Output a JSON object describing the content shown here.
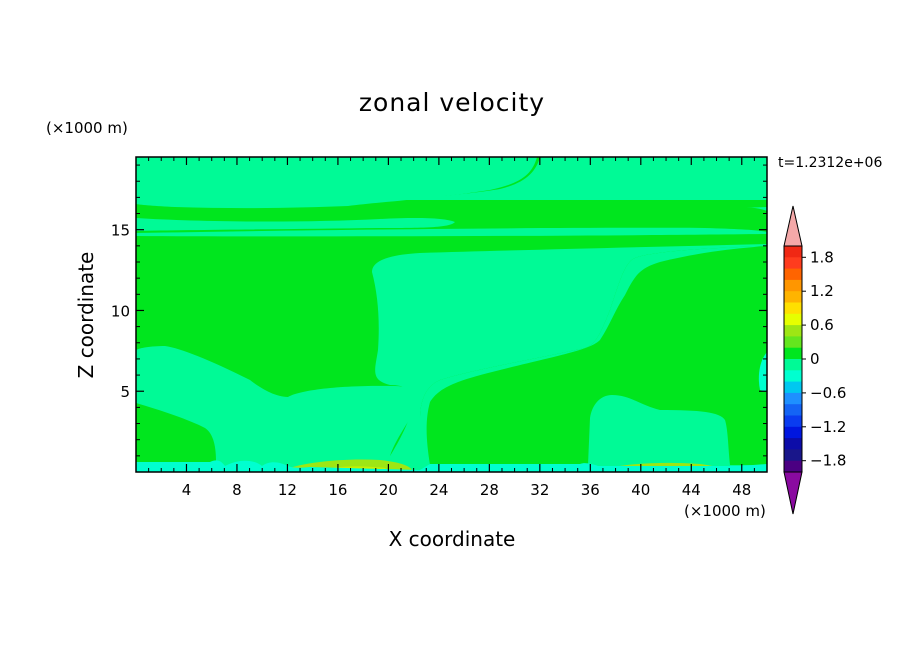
{
  "chart_data": {
    "type": "heatmap",
    "title": "zonal velocity",
    "xlabel": "X coordinate",
    "ylabel": "Z coordinate",
    "x_units": "(×1000 m)",
    "y_units": "(×1000 m)",
    "time_label": "t=1.2312e+06",
    "xlim": [
      0,
      50
    ],
    "ylim": [
      0,
      19.5
    ],
    "x_ticks": [
      "4",
      "8",
      "12",
      "16",
      "20",
      "24",
      "28",
      "32",
      "36",
      "40",
      "44",
      "48"
    ],
    "y_ticks": [
      "5",
      "10",
      "15"
    ],
    "colorbar": {
      "levels": [
        -2.0,
        -1.8,
        -1.6,
        -1.4,
        -1.2,
        -1.0,
        -0.8,
        -0.6,
        -0.4,
        -0.2,
        0.0,
        0.2,
        0.4,
        0.6,
        0.8,
        1.0,
        1.2,
        1.4,
        1.6,
        1.8,
        2.0
      ],
      "colors": [
        "#4b0082",
        "#19168a",
        "#0c0ca8",
        "#0016e0",
        "#0a3cf0",
        "#1464f5",
        "#1e90ff",
        "#00c8f0",
        "#00ffd0",
        "#00fa96",
        "#00e61e",
        "#64e61e",
        "#9ee614",
        "#e6ff00",
        "#ffe000",
        "#ffb400",
        "#ff9600",
        "#ff6400",
        "#ff3c1e",
        "#f02814"
      ],
      "under_color": "#8a0aa0",
      "over_color": "#f4a8a8",
      "tick_labels": [
        "1.8",
        "1.2",
        "0.6",
        "0",
        "−0.6",
        "−1.2",
        "−1.8"
      ]
    },
    "field_regions": [
      {
        "value_range": "-0.2 to 0",
        "color": "#00fa96",
        "extent": "upper-left lobe, z 16.7 to 19.5, x 0 to 5"
      },
      {
        "value_range": "-0.2 to 0",
        "color": "#00fa96",
        "extent": "top band, z 16 to 19.5, x 15 to 50"
      },
      {
        "value_range": "-0.2 to 0",
        "color": "#00fa96",
        "extent": "thin band near z 15.3, x 0 to 50"
      },
      {
        "value_range": "-0.2 to 0",
        "color": "#00fa96",
        "extent": "central region, z 1 to 13, x 0 to 40"
      },
      {
        "value_range": "-0.2 to 0",
        "color": "#00fa96",
        "extent": "lower-right pocket, z 1 to 4.7, x 35 to 47"
      },
      {
        "value_range": "0 to 0.2",
        "color": "#00e61e",
        "extent": "upper-left block, z 5 to 15, x 0 to 19"
      },
      {
        "value_range": "0 to 0.2",
        "color": "#00e61e",
        "extent": "right block, z 1 to 13, x 37 to 50"
      },
      {
        "value_range": "0 to 0.2",
        "color": "#00e61e",
        "extent": "lower-left, z 0.5 to 4, x 0 to 6"
      },
      {
        "value_range": "0 to 0.2",
        "color": "#00e61e",
        "extent": "lower-middle, z 0.5 to 5.5, x 23 to 35"
      },
      {
        "value_range": "0.2 to 0.6",
        "color": "#9ee614",
        "extent": "near bottom, z 0.2 to 0.7, x 13 to 21 and x 40 to 47"
      },
      {
        "value_range": "-0.6 to -0.4",
        "color": "#00ffd0",
        "extent": "bottom edge, z 0 to 0.5, x 0 to 50"
      }
    ]
  }
}
